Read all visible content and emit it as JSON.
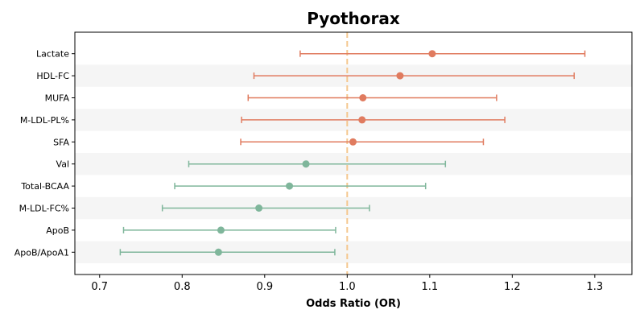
{
  "chart_data": {
    "type": "forest",
    "title": "Pyothorax",
    "xlabel": "Odds Ratio (OR)",
    "ylabel": "",
    "xlim": [
      0.67,
      1.345
    ],
    "xticks": [
      "0.7",
      "0.8",
      "0.9",
      "1.0",
      "1.1",
      "1.2",
      "1.3"
    ],
    "reference_line": {
      "x": 1.0,
      "style": "dashed",
      "color": "#f5c78e"
    },
    "colors": {
      "positive": "#e07b5f",
      "negative": "#7fb69b",
      "band": "#f5f5f5"
    },
    "categories": [
      "Lactate",
      "HDL-FC",
      "MUFA",
      "M-LDL-PL%",
      "SFA",
      "Val",
      "Total-BCAA",
      "M-LDL-FC%",
      "ApoB",
      "ApoB/ApoA1"
    ],
    "series": [
      {
        "or": [
          1.103,
          1.064,
          1.019,
          1.018,
          1.007,
          0.95,
          0.93,
          0.893,
          0.847,
          0.844
        ],
        "lower": [
          0.943,
          0.887,
          0.88,
          0.872,
          0.871,
          0.808,
          0.791,
          0.776,
          0.729,
          0.725
        ],
        "upper": [
          1.288,
          1.275,
          1.181,
          1.191,
          1.165,
          1.119,
          1.095,
          1.027,
          0.986,
          0.985
        ]
      }
    ]
  }
}
